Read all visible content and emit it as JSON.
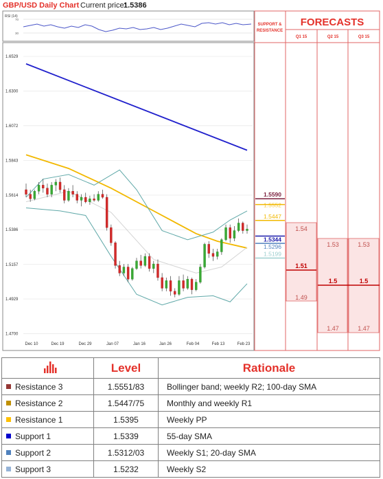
{
  "header": {
    "pair_title": "GBP/USD Daily Chart",
    "current_price_label": "Current price:",
    "current_price_value": "1.5386"
  },
  "rsi_panel": {
    "label": "RSI (14)",
    "ticks": [
      "70",
      "30"
    ]
  },
  "chart_data": {
    "type": "candlestick",
    "title": "GBP/USD Daily Chart",
    "ylim": [
      1.468,
      1.662
    ],
    "y_ticks": [
      "1.6529",
      "1.6300",
      "1.6072",
      "1.5843",
      "1.5614",
      "1.5386",
      "1.5157",
      "1.4929",
      "1.4700"
    ],
    "x_ticks": [
      "Dec 10",
      "Dec 19",
      "Dec 29",
      "Jan 07",
      "Jan 16",
      "Jan 26",
      "Feb 04",
      "Feb 13",
      "Feb 23"
    ],
    "candles": [
      [
        1.565,
        1.569,
        1.56,
        1.562
      ],
      [
        1.562,
        1.565,
        1.557,
        1.559
      ],
      [
        1.559,
        1.565,
        1.558,
        1.564
      ],
      [
        1.564,
        1.57,
        1.562,
        1.568
      ],
      [
        1.568,
        1.572,
        1.563,
        1.566
      ],
      [
        1.566,
        1.569,
        1.56,
        1.562
      ],
      [
        1.562,
        1.57,
        1.56,
        1.568
      ],
      [
        1.568,
        1.572,
        1.564,
        1.57
      ],
      [
        1.57,
        1.573,
        1.563,
        1.565
      ],
      [
        1.565,
        1.568,
        1.556,
        1.558
      ],
      [
        1.558,
        1.566,
        1.557,
        1.564
      ],
      [
        1.564,
        1.568,
        1.56,
        1.562
      ],
      [
        1.562,
        1.564,
        1.556,
        1.558
      ],
      [
        1.558,
        1.562,
        1.554,
        1.56
      ],
      [
        1.56,
        1.563,
        1.556,
        1.557
      ],
      [
        1.557,
        1.561,
        1.555,
        1.559
      ],
      [
        1.559,
        1.562,
        1.557,
        1.558
      ],
      [
        1.558,
        1.564,
        1.557,
        1.562
      ],
      [
        1.562,
        1.565,
        1.559,
        1.56
      ],
      [
        1.56,
        1.562,
        1.538,
        1.54
      ],
      [
        1.54,
        1.542,
        1.528,
        1.53
      ],
      [
        1.53,
        1.531,
        1.513,
        1.515
      ],
      [
        1.515,
        1.518,
        1.508,
        1.51
      ],
      [
        1.51,
        1.516,
        1.508,
        1.514
      ],
      [
        1.514,
        1.516,
        1.504,
        1.506
      ],
      [
        1.506,
        1.514,
        1.505,
        1.513
      ],
      [
        1.513,
        1.52,
        1.512,
        1.518
      ],
      [
        1.518,
        1.522,
        1.513,
        1.515
      ],
      [
        1.515,
        1.523,
        1.514,
        1.521
      ],
      [
        1.521,
        1.523,
        1.511,
        1.513
      ],
      [
        1.513,
        1.518,
        1.51,
        1.516
      ],
      [
        1.516,
        1.519,
        1.505,
        1.507
      ],
      [
        1.507,
        1.51,
        1.498,
        1.5
      ],
      [
        1.5,
        1.507,
        1.498,
        1.505
      ],
      [
        1.505,
        1.508,
        1.495,
        1.498
      ],
      [
        1.498,
        1.5,
        1.494,
        1.496
      ],
      [
        1.496,
        1.508,
        1.495,
        1.505
      ],
      [
        1.505,
        1.509,
        1.498,
        1.5
      ],
      [
        1.5,
        1.508,
        1.499,
        1.506
      ],
      [
        1.506,
        1.507,
        1.496,
        1.499
      ],
      [
        1.499,
        1.506,
        1.498,
        1.504
      ],
      [
        1.504,
        1.516,
        1.503,
        1.514
      ],
      [
        1.514,
        1.53,
        1.513,
        1.529
      ],
      [
        1.529,
        1.531,
        1.52,
        1.523
      ],
      [
        1.523,
        1.526,
        1.518,
        1.521
      ],
      [
        1.521,
        1.526,
        1.519,
        1.524
      ],
      [
        1.524,
        1.533,
        1.522,
        1.532
      ],
      [
        1.532,
        1.542,
        1.531,
        1.54
      ],
      [
        1.54,
        1.542,
        1.53,
        1.533
      ],
      [
        1.533,
        1.541,
        1.531,
        1.538
      ],
      [
        1.538,
        1.546,
        1.537,
        1.543
      ],
      [
        1.543,
        1.544,
        1.536,
        1.538
      ],
      [
        1.538,
        1.542,
        1.536,
        1.539
      ]
    ],
    "lines": [
      {
        "color": "#2020cc",
        "values": [
          [
            0,
            1.648
          ],
          [
            52,
            1.591
          ]
        ]
      },
      {
        "color": "#f2b800",
        "values": [
          [
            0,
            1.588
          ],
          [
            10,
            1.579
          ],
          [
            20,
            1.566
          ],
          [
            30,
            1.551
          ],
          [
            40,
            1.536
          ],
          [
            45,
            1.531
          ],
          [
            52,
            1.5265
          ]
        ]
      },
      {
        "color": "#5fa8a8",
        "values": [
          [
            0,
            1.56
          ],
          [
            4,
            1.572
          ],
          [
            10,
            1.575
          ],
          [
            16,
            1.568
          ],
          [
            22,
            1.578
          ],
          [
            26,
            1.565
          ],
          [
            32,
            1.538
          ],
          [
            38,
            1.532
          ],
          [
            44,
            1.537
          ],
          [
            48,
            1.545
          ],
          [
            52,
            1.551
          ]
        ]
      },
      {
        "color": "#5fa8a8",
        "values": [
          [
            0,
            1.553
          ],
          [
            8,
            1.551
          ],
          [
            14,
            1.548
          ],
          [
            20,
            1.521
          ],
          [
            26,
            1.496
          ],
          [
            32,
            1.489
          ],
          [
            38,
            1.494
          ],
          [
            44,
            1.495
          ],
          [
            48,
            1.491
          ],
          [
            52,
            1.503
          ]
        ]
      },
      {
        "color": "#d4d4d4",
        "values": [
          [
            0,
            1.557
          ],
          [
            10,
            1.564
          ],
          [
            20,
            1.55
          ],
          [
            30,
            1.519
          ],
          [
            40,
            1.51
          ],
          [
            46,
            1.514
          ],
          [
            52,
            1.527
          ]
        ]
      }
    ]
  },
  "support_resistance": {
    "header": [
      "SUPPORT &",
      "RESISTANCE"
    ],
    "levels": [
      {
        "label": "1.5590",
        "value": 1.559,
        "color": "#7a1f3d"
      },
      {
        "label": "1.5552",
        "value": 1.5552,
        "color": "#f2b800"
      },
      {
        "label": "1.5447",
        "value": 1.5447,
        "color": "#f2b800"
      },
      {
        "label": "1.5344",
        "value": 1.5344,
        "color": "#1a1aaa"
      },
      {
        "label": "1.5296",
        "value": 1.5296,
        "color": "#4f81bd"
      },
      {
        "label": "1.5199",
        "value": 1.5199,
        "color": "#9ecfcf"
      }
    ]
  },
  "forecasts": {
    "title": "FORECASTS",
    "columns": [
      "Q1 15",
      "Q2 15",
      "Q3 15"
    ],
    "q1": {
      "upper": "1.54",
      "mid": "1.51",
      "lower": "1.49"
    },
    "q2": {
      "upper": "1.53",
      "mid": "1.5",
      "lower": "1.47"
    },
    "q3": {
      "upper": "1.53",
      "mid": "1.5",
      "lower": "1.47"
    }
  },
  "table": {
    "headers": {
      "level": "Level",
      "rationale": "Rationale"
    },
    "rows": [
      {
        "name": "Resistance 3",
        "level": "1.5551/83",
        "rationale": "Bollinger band; weekly R2; 100-day SMA",
        "color": "#953735"
      },
      {
        "name": "Resistance 2",
        "level": "1.5447/75",
        "rationale": "Monthly and weekly R1",
        "color": "#c09000"
      },
      {
        "name": "Resistance 1",
        "level": "1.5395",
        "rationale": "Weekly PP",
        "color": "#ffc000"
      },
      {
        "name": "Support 1",
        "level": "1.5339",
        "rationale": "55-day SMA",
        "color": "#0000cc"
      },
      {
        "name": "Support 2",
        "level": "1.5312/03",
        "rationale": "Weekly S1; 20-day SMA",
        "color": "#4f81bd"
      },
      {
        "name": "Support 3",
        "level": "1.5232",
        "rationale": "Weekly S2",
        "color": "#95b3d7"
      }
    ]
  }
}
